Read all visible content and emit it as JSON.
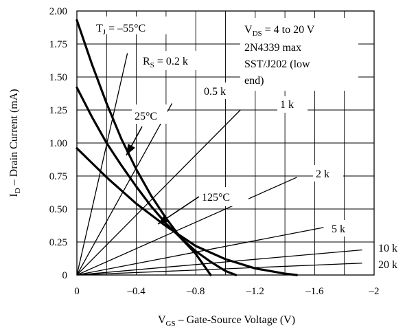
{
  "chart_data": {
    "type": "line",
    "xlabel": {
      "main": "V",
      "sub": "GS",
      "rest": " – Gate-Source Voltage (V)"
    },
    "ylabel": {
      "main": "I",
      "sub": "D",
      "rest": " – Drain Current (mA)"
    },
    "xlim": [
      0,
      -2
    ],
    "ylim": [
      0,
      2
    ],
    "x_ticks": [
      0,
      -0.4,
      -0.8,
      -1.2,
      -1.6,
      -2
    ],
    "x_tick_labels": [
      "0",
      "–0.4",
      "–0.8",
      "–1.2",
      "–1.6",
      "–2"
    ],
    "y_ticks": [
      0,
      0.25,
      0.5,
      0.75,
      1.0,
      1.25,
      1.5,
      1.75,
      2.0
    ],
    "y_tick_labels": [
      "0",
      "0.25",
      "0.50",
      "0.75",
      "1.00",
      "1.25",
      "1.50",
      "1.75",
      "2.00"
    ],
    "grid": true,
    "note_lines": [
      {
        "main": "V",
        "sub": "DS",
        "rest": " = 4 to 20 V"
      },
      {
        "main": "2N4339 max"
      },
      {
        "main": "SST/J202 (low"
      },
      {
        "main": "end)"
      }
    ],
    "temp_curves": [
      {
        "label": {
          "main": "T",
          "sub": "J",
          "rest": " = –55°C"
        },
        "points": [
          [
            0,
            1.93
          ],
          [
            -0.1,
            1.6
          ],
          [
            -0.2,
            1.3
          ],
          [
            -0.3,
            1.03
          ],
          [
            -0.4,
            0.8
          ],
          [
            -0.5,
            0.6
          ],
          [
            -0.6,
            0.43
          ],
          [
            -0.7,
            0.28
          ],
          [
            -0.8,
            0.16
          ],
          [
            -0.85,
            0.08
          ],
          [
            -0.9,
            0
          ]
        ]
      },
      {
        "label": {
          "main": "25°C"
        },
        "points": [
          [
            0,
            1.42
          ],
          [
            -0.1,
            1.2
          ],
          [
            -0.2,
            1.0
          ],
          [
            -0.3,
            0.83
          ],
          [
            -0.4,
            0.67
          ],
          [
            -0.5,
            0.52
          ],
          [
            -0.6,
            0.39
          ],
          [
            -0.7,
            0.28
          ],
          [
            -0.8,
            0.18
          ],
          [
            -0.9,
            0.1
          ],
          [
            -1.0,
            0.03
          ],
          [
            -1.07,
            0
          ]
        ]
      },
      {
        "label": {
          "main": "125°C"
        },
        "points": [
          [
            0,
            0.96
          ],
          [
            -0.2,
            0.74
          ],
          [
            -0.4,
            0.54
          ],
          [
            -0.6,
            0.37
          ],
          [
            -0.8,
            0.22
          ],
          [
            -1.0,
            0.12
          ],
          [
            -1.2,
            0.05
          ],
          [
            -1.4,
            0.01
          ],
          [
            -1.48,
            0
          ]
        ]
      }
    ],
    "resistor_lines": [
      {
        "label": {
          "main": "R",
          "sub": "S",
          "rest": " = 0.2 k"
        },
        "end": [
          -0.34,
          1.68
        ]
      },
      {
        "label": {
          "main": "0.5 k"
        },
        "end": [
          -0.64,
          1.3
        ]
      },
      {
        "label": {
          "main": "1 k"
        },
        "end": [
          -1.1,
          1.25
        ]
      },
      {
        "label": {
          "main": "2 k"
        },
        "end": [
          -1.48,
          0.74
        ]
      },
      {
        "label": {
          "main": "5 k"
        },
        "end": [
          -1.66,
          0.36
        ]
      },
      {
        "label": {
          "main": "10 k"
        },
        "end": [
          -1.92,
          0.19
        ]
      },
      {
        "label": {
          "main": "20 k"
        },
        "end": [
          -1.92,
          0.09
        ]
      }
    ]
  }
}
